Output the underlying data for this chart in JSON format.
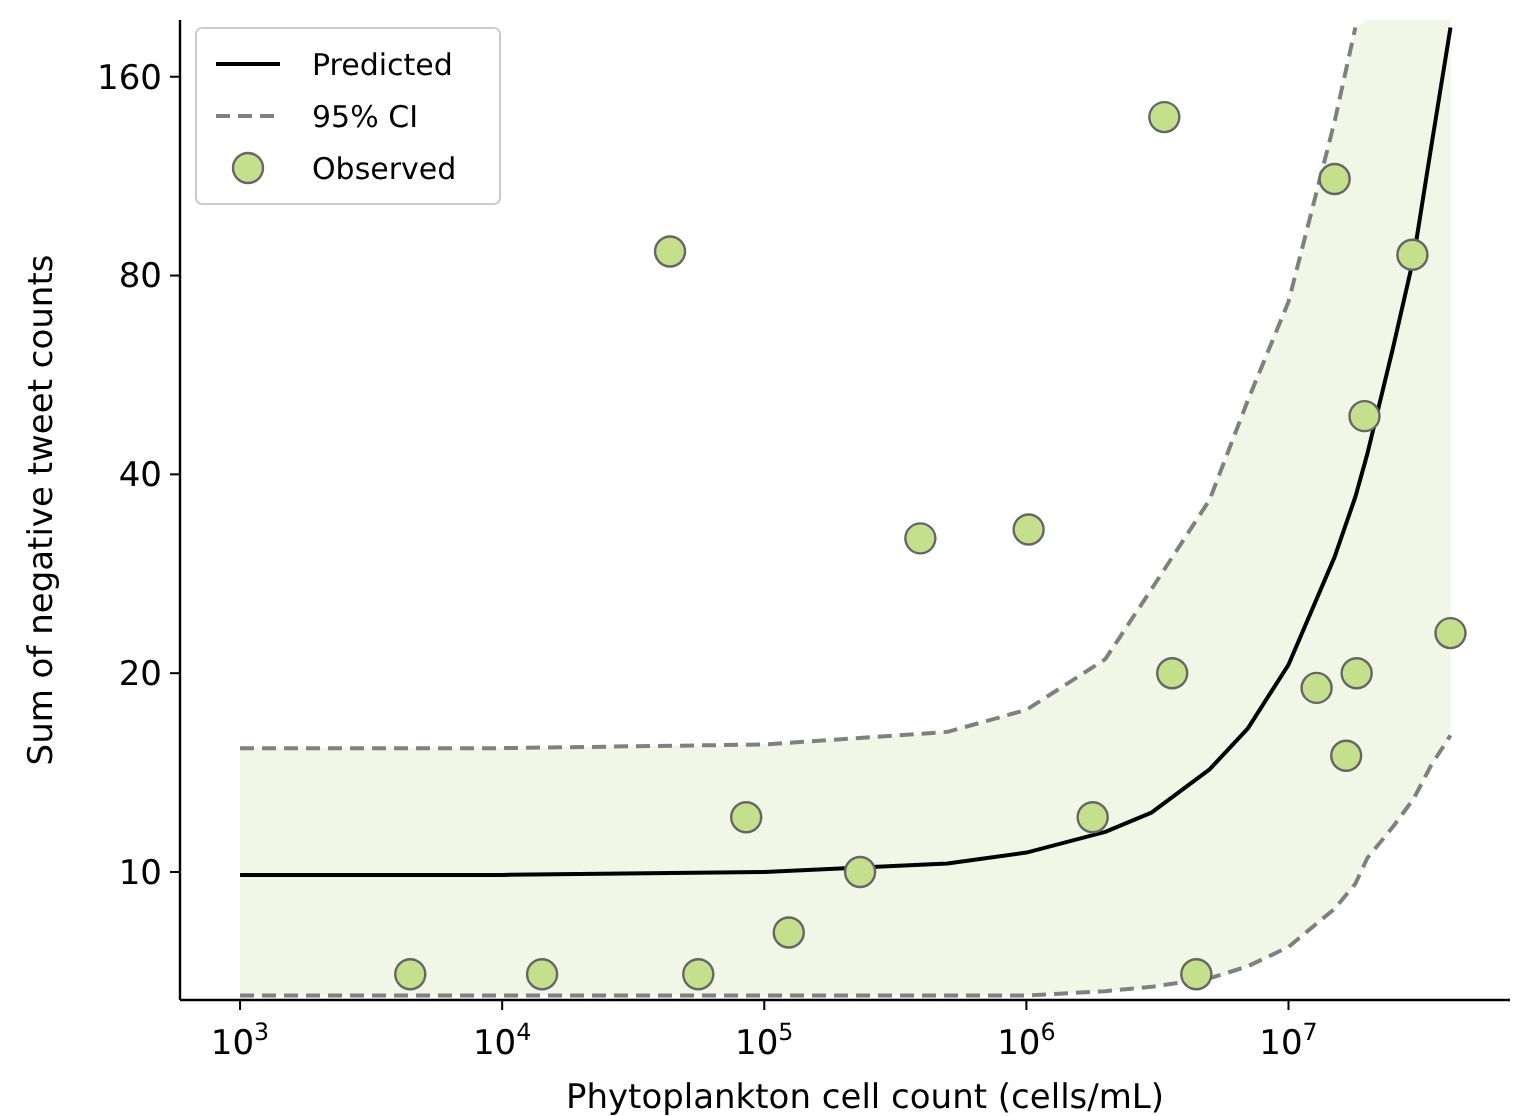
{
  "chart_data": {
    "type": "line",
    "xlabel": "Phytoplankton cell count (cells/mL)",
    "ylabel": "Sum of negative tweet counts",
    "log": "xy",
    "grid": false,
    "legend": "top left",
    "xlim": [
      590,
      70000000
    ],
    "ylim": [
      6.4,
      195
    ],
    "xticks": [
      {
        "value": 1000,
        "label": "10$^{3}$"
      },
      {
        "value": 10000,
        "label": "10$^{4}$"
      },
      {
        "value": 100000,
        "label": "10$^{5}$"
      },
      {
        "value": 1000000,
        "label": "10$^{6}$"
      },
      {
        "value": 10000000,
        "label": "10$^{7}$"
      }
    ],
    "yticks": [
      10,
      20,
      40,
      80,
      160
    ],
    "series": [
      {
        "name": "Predicted",
        "color": "#000000",
        "line_style": "solid",
        "x": [
          1000,
          10000,
          100000,
          500000,
          1000000,
          2000000,
          3000000,
          5000000,
          7000000,
          10000000,
          15000000,
          18000000,
          20000000,
          25000000,
          30000000,
          35000000,
          41500000
        ],
        "values": [
          9.9,
          9.9,
          10.0,
          10.3,
          10.7,
          11.5,
          12.3,
          14.3,
          16.5,
          20.6,
          30,
          37,
          43,
          62,
          85,
          125,
          190
        ],
        "lower": [
          6.5,
          6.5,
          6.5,
          6.5,
          6.5,
          6.6,
          6.7,
          6.9,
          7.2,
          7.7,
          8.8,
          9.6,
          10.5,
          11.7,
          12.9,
          14.5,
          16.1
        ],
        "upper": [
          15.4,
          15.4,
          15.6,
          16.3,
          17.6,
          21,
          26.8,
          36.6,
          51.8,
          73,
          137,
          190,
          195,
          195,
          195,
          195,
          195
        ]
      },
      {
        "name": "95% CI",
        "color": "#808080",
        "line_style": "dashed",
        "x": [
          1000,
          10000,
          100000,
          500000,
          1000000,
          2000000,
          3000000,
          5000000,
          7000000,
          10000000,
          15000000,
          18000000
        ],
        "values": [
          15.4,
          15.4,
          15.6,
          16.3,
          17.6,
          21,
          26.8,
          36.6,
          51.8,
          73,
          137,
          190
        ]
      },
      {
        "color": "#808080",
        "line_style": "dashed",
        "x": [
          1000,
          10000,
          100000,
          500000,
          1000000,
          2000000,
          3000000,
          5000000,
          7000000,
          10000000,
          15000000,
          18000000,
          20000000,
          25000000,
          30000000,
          35000000,
          41500000
        ],
        "values": [
          6.5,
          6.5,
          6.5,
          6.5,
          6.5,
          6.6,
          6.7,
          6.9,
          7.2,
          7.7,
          8.8,
          9.6,
          10.5,
          11.7,
          12.9,
          14.5,
          16.1
        ]
      },
      {
        "name": "Observed",
        "type": "scatter",
        "marker": "circle",
        "color": "#c5e08c",
        "x": [
          4460,
          14200,
          43700,
          56000,
          85300,
          124000,
          232000,
          394000,
          1020000,
          1790000,
          3360000,
          3600000,
          4450000,
          12800000,
          15000000,
          16600000,
          18200000,
          19500000,
          29700000,
          41500000
        ],
        "values": [
          7.0,
          7.0,
          87,
          7.0,
          12.1,
          8.1,
          10,
          32,
          33,
          12.1,
          139,
          20,
          7.0,
          19,
          112,
          15,
          20,
          49,
          86,
          23
        ]
      }
    ]
  }
}
